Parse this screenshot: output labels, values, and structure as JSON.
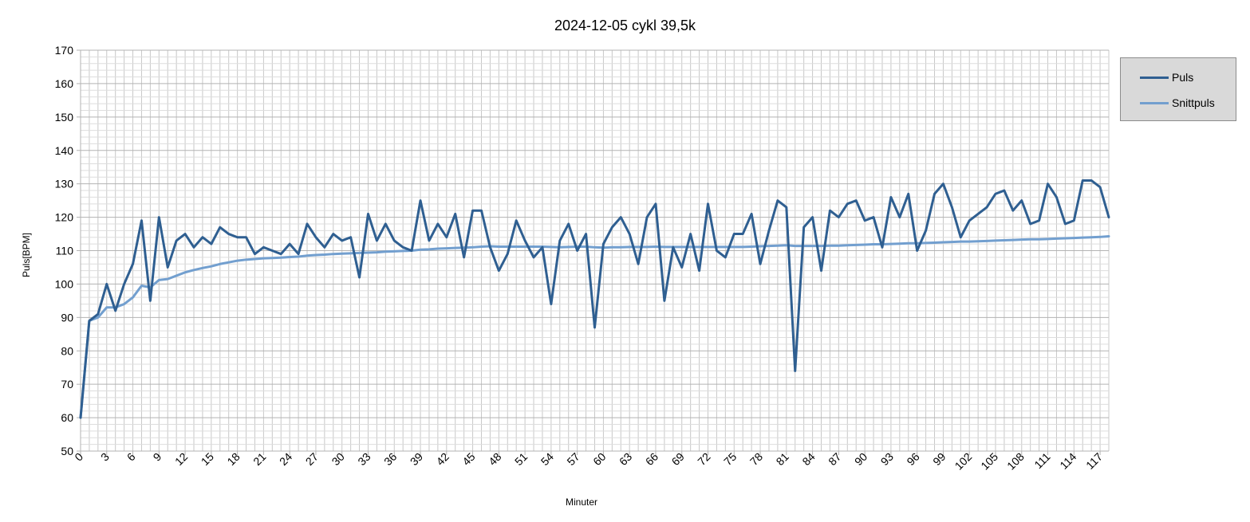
{
  "chart_data": {
    "type": "line",
    "title": "2024-12-05 cykl 39,5k",
    "xlabel": "Minuter",
    "ylabel": "Puls[BPM]",
    "ylim": [
      50,
      170
    ],
    "y_ticks": [
      50,
      60,
      70,
      80,
      90,
      100,
      110,
      120,
      130,
      140,
      150,
      160,
      170
    ],
    "xlim": [
      0,
      118
    ],
    "x_tick_labels": [
      "0",
      "3",
      "6",
      "9",
      "12",
      "15",
      "18",
      "21",
      "24",
      "27",
      "30",
      "33",
      "36",
      "39",
      "42",
      "45",
      "48",
      "51",
      "54",
      "57",
      "60",
      "63",
      "66",
      "69",
      "72",
      "75",
      "78",
      "81",
      "84",
      "87",
      "90",
      "93",
      "96",
      "99",
      "102",
      "105",
      "108",
      "111",
      "114",
      "117"
    ],
    "grid": true,
    "legend_position": "right",
    "colors": {
      "Puls": "#2f5f91",
      "Snittpuls": "#729fcf"
    },
    "series": [
      {
        "name": "Puls",
        "values": [
          60,
          89,
          91,
          100,
          92,
          100,
          106,
          119,
          95,
          120,
          105,
          113,
          115,
          111,
          114,
          112,
          117,
          115,
          114,
          114,
          109,
          111,
          110,
          109,
          112,
          109,
          118,
          114,
          111,
          115,
          113,
          114,
          102,
          121,
          113,
          118,
          113,
          111,
          110,
          125,
          113,
          118,
          114,
          121,
          108,
          122,
          122,
          111,
          104,
          109,
          119,
          113,
          108,
          111,
          94,
          113,
          118,
          110,
          115,
          87,
          112,
          117,
          120,
          115,
          106,
          120,
          124,
          95,
          111,
          105,
          115,
          104,
          124,
          110,
          108,
          115,
          115,
          121,
          106,
          116,
          125,
          123,
          74,
          117,
          120,
          104,
          122,
          120,
          124,
          125,
          119,
          120,
          111,
          126,
          120,
          127,
          110,
          116,
          127,
          130,
          123,
          114,
          119,
          121,
          123,
          127,
          128,
          122,
          125,
          118,
          119,
          130,
          126,
          118,
          119,
          131,
          131,
          129,
          120
        ]
      },
      {
        "name": "Snittpuls",
        "values": [
          60,
          89,
          90,
          93,
          93,
          94,
          96,
          99.5,
          99,
          101.2,
          101.5,
          102.5,
          103.5,
          104.2,
          104.8,
          105.3,
          106,
          106.5,
          107,
          107.3,
          107.5,
          107.7,
          107.8,
          107.9,
          108.1,
          108.2,
          108.5,
          108.7,
          108.8,
          109,
          109.1,
          109.2,
          109.3,
          109.4,
          109.5,
          109.7,
          109.8,
          109.9,
          110,
          110.3,
          110.4,
          110.6,
          110.7,
          110.8,
          110.9,
          111,
          111.2,
          111.3,
          111.2,
          111.2,
          111.2,
          111.2,
          111.2,
          111.2,
          111.1,
          111,
          111.1,
          111.2,
          111.2,
          111,
          110.9,
          111,
          111,
          111.1,
          111.1,
          111.1,
          111.2,
          111.1,
          111.1,
          111.1,
          111.1,
          111.1,
          111.1,
          111.1,
          111.1,
          111.1,
          111.1,
          111.2,
          111.3,
          111.4,
          111.5,
          111.6,
          111.4,
          111.4,
          111.4,
          111.4,
          111.5,
          111.5,
          111.6,
          111.7,
          111.8,
          111.9,
          111.9,
          112,
          112.1,
          112.2,
          112.2,
          112.3,
          112.4,
          112.5,
          112.6,
          112.7,
          112.7,
          112.8,
          112.9,
          113,
          113.1,
          113.2,
          113.3,
          113.4,
          113.4,
          113.5,
          113.6,
          113.7,
          113.8,
          113.9,
          114,
          114.1,
          114.3
        ]
      }
    ]
  }
}
